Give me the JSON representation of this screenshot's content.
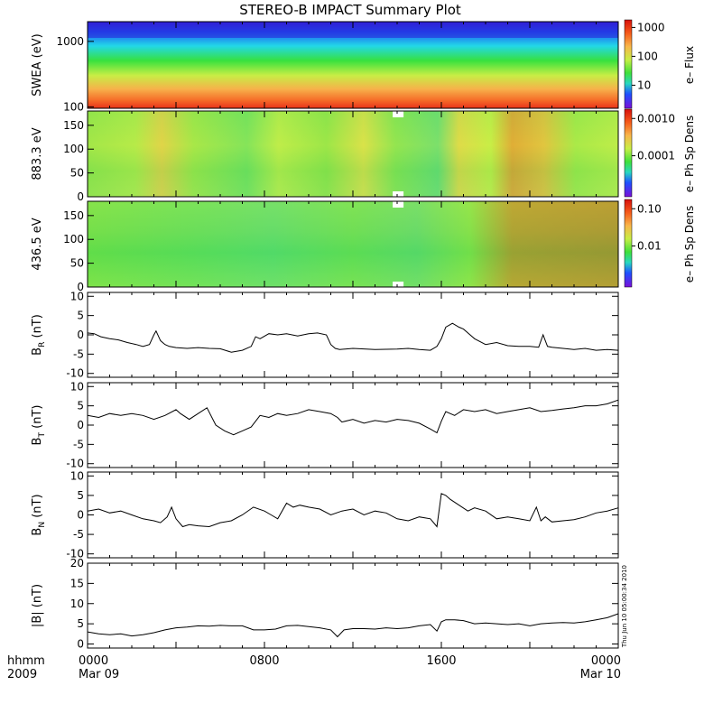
{
  "title": "STEREO-B IMPACT Summary Plot",
  "footer": {
    "left_top": "hhmm",
    "left_bottom": "2009",
    "x_ticks": [
      {
        "label": "0000",
        "sub": "Mar 09",
        "hour": 0
      },
      {
        "label": "0800",
        "sub": "",
        "hour": 8
      },
      {
        "label": "1600",
        "sub": "",
        "hour": 16
      },
      {
        "label": "0000",
        "sub": "Mar 10",
        "hour": 24
      }
    ],
    "timestamp": "Thu Jun 10 05:00:34 2010"
  },
  "spectrograms": [
    {
      "ylabel": "SWEA (eV)",
      "cbar_label": "e– Flux",
      "y_ticks": [
        "1000",
        "100"
      ],
      "cbar_ticks": [
        "1000",
        "100",
        "10"
      ]
    },
    {
      "ylabel": "883.3 eV",
      "cbar_label": "e– Ph Sp Dens",
      "y_ticks": [
        "150",
        "100",
        "50",
        "0"
      ],
      "cbar_ticks": [
        "0.0010",
        "0.0001"
      ]
    },
    {
      "ylabel": "436.5 eV",
      "cbar_label": "e– Ph Sp Dens",
      "y_ticks": [
        "150",
        "100",
        "50",
        "0"
      ],
      "cbar_ticks": [
        "0.10",
        "0.01"
      ]
    }
  ],
  "chart_data": [
    {
      "type": "heatmap",
      "title": "STEREO-B IMPACT Summary Plot",
      "ylabel": "SWEA (eV)",
      "y_scale": "log",
      "ylim": [
        95,
        2000
      ],
      "colorbar": {
        "label": "e– Flux",
        "scale": "log",
        "ticks": [
          10,
          100,
          1000
        ]
      },
      "x_hours": [
        0,
        24
      ]
    },
    {
      "type": "heatmap",
      "ylabel": "883.3 eV",
      "ylim": [
        0,
        180
      ],
      "colorbar": {
        "label": "e– Ph Sp Dens",
        "scale": "log",
        "ticks": [
          0.0001,
          0.001
        ]
      },
      "x_hours": [
        0,
        24
      ]
    },
    {
      "type": "heatmap",
      "ylabel": "436.5 eV",
      "ylim": [
        0,
        180
      ],
      "colorbar": {
        "label": "e– Ph Sp Dens",
        "scale": "log",
        "ticks": [
          0.01,
          0.1
        ]
      },
      "x_hours": [
        0,
        24
      ]
    },
    {
      "type": "line",
      "ylabel_main": "B",
      "ylabel_sub": "R",
      "ylabel_unit": " (nT)",
      "ylim": [
        -11,
        11
      ],
      "y_ticks": [
        -10,
        -5,
        0,
        5,
        10
      ],
      "x": [
        0,
        0.3,
        0.6,
        1,
        1.4,
        1.8,
        2.2,
        2.5,
        2.8,
        3.0,
        3.1,
        3.3,
        3.5,
        3.7,
        4,
        4.5,
        5,
        5.5,
        6,
        6.5,
        7,
        7.4,
        7.6,
        7.8,
        8.2,
        8.6,
        9,
        9.5,
        10,
        10.4,
        10.8,
        11,
        11.2,
        11.4,
        12,
        13,
        14,
        14.5,
        15,
        15.5,
        15.8,
        16,
        16.2,
        16.5,
        16.8,
        17,
        17.2,
        17.5,
        18,
        18.5,
        19,
        19.5,
        20,
        20.4,
        20.6,
        20.8,
        21,
        21.5,
        22,
        22.5,
        23,
        23.5,
        24
      ],
      "y": [
        0.5,
        0.3,
        -0.5,
        -1,
        -1.3,
        -2,
        -2.5,
        -3,
        -2.5,
        0,
        1,
        -1.5,
        -2.5,
        -3,
        -3.3,
        -3.5,
        -3.3,
        -3.5,
        -3.6,
        -4.5,
        -4,
        -3,
        -0.5,
        -1,
        0.3,
        0,
        0.3,
        -0.3,
        0.3,
        0.5,
        0,
        -2.5,
        -3.5,
        -3.8,
        -3.5,
        -3.8,
        -3.7,
        -3.5,
        -3.8,
        -4,
        -3,
        -1,
        2,
        3,
        2,
        1.5,
        0.5,
        -1,
        -2.5,
        -2,
        -2.8,
        -3,
        -3,
        -3.2,
        0,
        -3,
        -3.2,
        -3.5,
        -3.8,
        -3.5,
        -4,
        -3.8,
        -4
      ]
    },
    {
      "type": "line",
      "ylabel_main": "B",
      "ylabel_sub": "T",
      "ylabel_unit": " (nT)",
      "ylim": [
        -11,
        11
      ],
      "y_ticks": [
        -10,
        -5,
        0,
        5,
        10
      ],
      "x": [
        0,
        0.5,
        1,
        1.5,
        2,
        2.5,
        3,
        3.5,
        4,
        4.2,
        4.6,
        5,
        5.4,
        5.8,
        6.2,
        6.6,
        7,
        7.4,
        7.8,
        8.2,
        8.6,
        9,
        9.5,
        10,
        10.5,
        11,
        11.3,
        11.5,
        12,
        12.5,
        13,
        13.5,
        14,
        14.5,
        15,
        15.5,
        15.8,
        16,
        16.2,
        16.6,
        17,
        17.5,
        18,
        18.5,
        19,
        19.5,
        20,
        20.5,
        21,
        21.5,
        22,
        22.5,
        23,
        23.5,
        24
      ],
      "y": [
        2.5,
        2,
        3,
        2.5,
        3,
        2.5,
        1.5,
        2.5,
        4,
        3,
        1.5,
        3,
        4.5,
        0,
        -1.5,
        -2.5,
        -1.5,
        -0.5,
        2.5,
        2,
        3,
        2.5,
        3,
        4,
        3.5,
        3,
        2,
        0.8,
        1.5,
        0.5,
        1.2,
        0.8,
        1.5,
        1.2,
        0.5,
        -1,
        -2,
        1,
        3.5,
        2.5,
        4,
        3.5,
        4,
        3,
        3.5,
        4,
        4.5,
        3.5,
        3.8,
        4.2,
        4.5,
        5,
        5,
        5.5,
        6.5
      ]
    },
    {
      "type": "line",
      "ylabel_main": "B",
      "ylabel_sub": "N",
      "ylabel_unit": " (nT)",
      "ylim": [
        -11,
        11
      ],
      "y_ticks": [
        -10,
        -5,
        0,
        5,
        10
      ],
      "x": [
        0,
        0.5,
        1,
        1.5,
        2,
        2.5,
        3,
        3.3,
        3.6,
        3.8,
        4,
        4.3,
        4.6,
        5,
        5.5,
        6,
        6.5,
        7,
        7.5,
        8,
        8.3,
        8.6,
        9,
        9.3,
        9.6,
        10,
        10.5,
        11,
        11.5,
        12,
        12.5,
        13,
        13.5,
        14,
        14.5,
        15,
        15.5,
        15.8,
        16,
        16.2,
        16.4,
        16.8,
        17.2,
        17.5,
        18,
        18.5,
        19,
        19.5,
        20,
        20.3,
        20.5,
        20.7,
        21,
        21.5,
        22,
        22.5,
        23,
        23.5,
        24
      ],
      "y": [
        1,
        1.5,
        0.5,
        1,
        0,
        -1,
        -1.5,
        -2,
        -0.5,
        2,
        -1,
        -3,
        -2.5,
        -2.8,
        -3,
        -2,
        -1.5,
        0,
        2,
        1,
        0,
        -1,
        3,
        2,
        2.5,
        2,
        1.5,
        0,
        1,
        1.5,
        0,
        1,
        0.5,
        -1,
        -1.5,
        -0.5,
        -1,
        -3,
        5.5,
        5,
        4,
        2.5,
        1,
        1.8,
        1,
        -1,
        -0.5,
        -1,
        -1.5,
        2,
        -1.5,
        -0.5,
        -1.8,
        -1.5,
        -1.2,
        -0.5,
        0.5,
        1,
        1.8
      ]
    },
    {
      "type": "line",
      "ylabel": "|B| (nT)",
      "ylim": [
        -1,
        20
      ],
      "y_ticks": [
        0,
        5,
        10,
        15,
        20
      ],
      "x": [
        0,
        0.5,
        1,
        1.5,
        2,
        2.5,
        3,
        3.5,
        4,
        4.5,
        5,
        5.5,
        6,
        6.5,
        7,
        7.5,
        8,
        8.5,
        9,
        9.5,
        10,
        10.5,
        11,
        11.3,
        11.6,
        12,
        12.5,
        13,
        13.5,
        14,
        14.5,
        15,
        15.5,
        15.8,
        16,
        16.2,
        16.6,
        17,
        17.5,
        18,
        18.5,
        19,
        19.5,
        20,
        20.5,
        21,
        21.5,
        22,
        22.5,
        23,
        23.5,
        24
      ],
      "y": [
        3,
        2.5,
        2.3,
        2.5,
        2,
        2.3,
        2.8,
        3.5,
        4,
        4.2,
        4.5,
        4.4,
        4.6,
        4.5,
        4.5,
        3.5,
        3.5,
        3.7,
        4.5,
        4.6,
        4.3,
        4,
        3.5,
        1.8,
        3.5,
        3.8,
        3.8,
        3.7,
        4,
        3.8,
        4,
        4.5,
        4.8,
        3.2,
        5.5,
        6,
        6,
        5.8,
        5,
        5.2,
        5,
        4.8,
        5,
        4.5,
        5,
        5.2,
        5.3,
        5.2,
        5.5,
        6,
        6.5,
        7.5
      ]
    }
  ]
}
